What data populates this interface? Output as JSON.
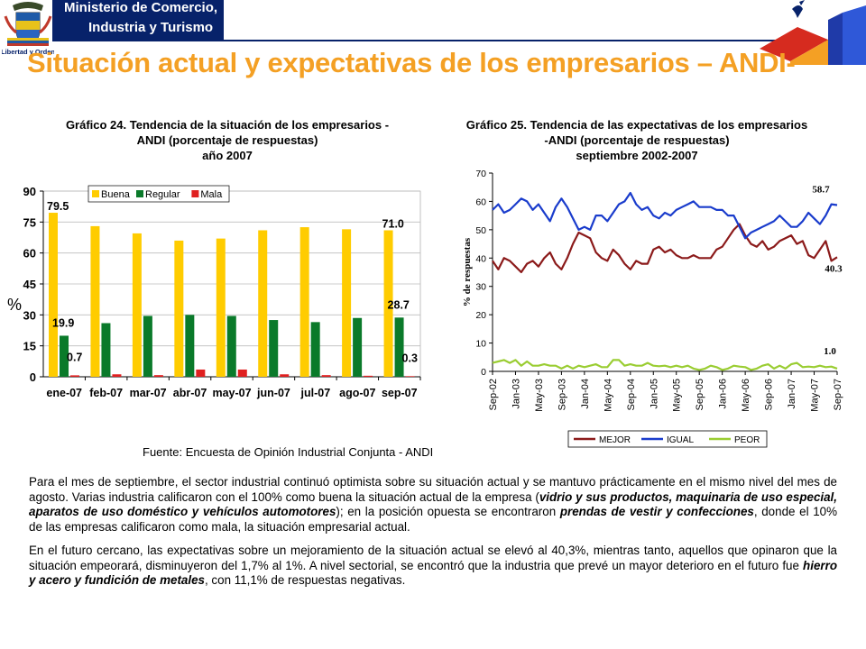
{
  "header": {
    "ministry_line1": "Ministerio de Comercio,",
    "ministry_line2": "Industria y Turismo",
    "crest_caption": "Libertad y Orden",
    "brand_dark": "#07226a",
    "brand_orange": "#f4a024"
  },
  "page_title": "Situación actual y expectativas de los empresarios – ANDI-",
  "chart24_title": {
    "line1": "Gráfico 24.  Tendencia de la situación de los  empresarios -",
    "line2": "ANDI (porcentaje de respuestas)",
    "line3": "año 2007"
  },
  "chart25_title": {
    "line1": "Gráfico 25.  Tendencia de las expectativas de los  empresarios",
    "line2": "-ANDI (porcentaje de respuestas)",
    "line3": "septiembre 2002-2007"
  },
  "source_note": "Fuente:  Encuesta de Opinión Industrial  Conjunta - ANDI",
  "paragraphs": [
    {
      "p1a": "Para el mes de septiembre, el sector industrial continuó optimista sobre su situación actual y se mantuvo prácticamente en el mismo nivel del mes de agosto.  Varias industria calificaron con el 100% como buena la situación actual de la empresa (",
      "p1b": "vidrio y sus productos, maquinaria de uso especial, aparatos de uso doméstico y vehículos automotores",
      "p1c": "); en la posición opuesta se encontraron ",
      "p1d": "prendas de vestir y confecciones",
      "p1e": ", donde el 10% de las empresas calificaron como mala, la situación empresarial actual."
    },
    {
      "p2a": "En el futuro cercano, las expectativas sobre un mejoramiento de la situación actual se elevó al 40,3%, mientras tanto, aquellos que opinaron que la situación empeorará, disminuyeron del 1,7% al 1%. A nivel sectorial, se encontró que la industria que prevé un mayor deterioro en el futuro fue ",
      "p2b": "hierro y acero y fundición de metales",
      "p2c": ", con 11,1% de respuestas negativas."
    }
  ],
  "chart_data": [
    {
      "type": "bar",
      "categories": [
        "ene-07",
        "feb-07",
        "mar-07",
        "abr-07",
        "may-07",
        "jun-07",
        "jul-07",
        "ago-07",
        "sep-07"
      ],
      "series": [
        {
          "name": "Buena",
          "color": "#ffcc00",
          "values": [
            79.5,
            73,
            69.5,
            66,
            67,
            71,
            72.5,
            71.5,
            71.0
          ]
        },
        {
          "name": "Regular",
          "color": "#0a7a2a",
          "values": [
            19.9,
            26,
            29.5,
            30,
            29.5,
            27.5,
            26.5,
            28.5,
            28.7
          ]
        },
        {
          "name": "Mala",
          "color": "#e02020",
          "values": [
            0.7,
            1.2,
            0.8,
            3.5,
            3.5,
            1.2,
            0.8,
            0.5,
            0.3
          ]
        }
      ],
      "data_labels": [
        {
          "text": "79.5",
          "series": 0,
          "index": 0
        },
        {
          "text": "19.9",
          "series": 1,
          "index": 0
        },
        {
          "text": "0.7",
          "series": 2,
          "index": 0
        },
        {
          "text": "71.0",
          "series": 0,
          "index": 8
        },
        {
          "text": "28.7",
          "series": 1,
          "index": 8
        },
        {
          "text": "0.3",
          "series": 2,
          "index": 8
        }
      ],
      "ylabel": "%",
      "ylim": [
        0,
        90
      ],
      "yticks": [
        0,
        15,
        30,
        45,
        60,
        75,
        90
      ],
      "grid": true,
      "legend": "top"
    },
    {
      "type": "line",
      "ylabel": "% de respuestas",
      "ylim": [
        0,
        70
      ],
      "yticks": [
        0,
        10,
        20,
        30,
        40,
        50,
        60,
        70
      ],
      "grid": false,
      "legend": "bottom",
      "x_tick_labels": [
        "Sep-02",
        "Jan-03",
        "May-03",
        "Sep-03",
        "Jan-04",
        "May-04",
        "Sep-04",
        "Jan-05",
        "May-05",
        "Sep-05",
        "Jan-06",
        "May-06",
        "Sep-06",
        "Jan-07",
        "May-07",
        "Sep-07"
      ],
      "series": [
        {
          "name": "MEJOR",
          "color": "#8b1a1a",
          "values": [
            39,
            36,
            40,
            39,
            37,
            35,
            38,
            39,
            37,
            40,
            42,
            38,
            36,
            40,
            45,
            49,
            48,
            47,
            42,
            40,
            39,
            43,
            41,
            38,
            36,
            39,
            38,
            38,
            43,
            44,
            42,
            43,
            41,
            40,
            40,
            41,
            40,
            40,
            40,
            43,
            44,
            47,
            50,
            52,
            48,
            45,
            44,
            46,
            43,
            44,
            46,
            47,
            48,
            45,
            46,
            41,
            40,
            43,
            46,
            39,
            40.3
          ]
        },
        {
          "name": "IGUAL",
          "color": "#1a3ccc",
          "values": [
            57,
            59,
            56,
            57,
            59,
            61,
            60,
            57,
            59,
            56,
            53,
            58,
            61,
            58,
            54,
            50,
            51,
            50,
            55,
            55,
            53,
            56,
            59,
            60,
            63,
            59,
            57,
            58,
            55,
            54,
            56,
            55,
            57,
            58,
            59,
            60,
            58,
            58,
            58,
            57,
            57,
            55,
            55,
            51,
            47,
            49,
            50,
            51,
            52,
            53,
            55,
            53,
            51,
            51,
            53,
            56,
            54,
            52,
            55,
            59,
            58.7
          ]
        },
        {
          "name": "PEOR",
          "color": "#9acd32",
          "values": [
            3,
            3.5,
            4,
            3,
            4,
            2,
            3.5,
            2,
            2,
            2.5,
            2,
            2,
            1,
            2,
            1,
            2,
            1.5,
            2,
            2.5,
            1.5,
            1.5,
            4,
            4,
            2,
            2.5,
            2,
            2,
            3,
            2,
            1.8,
            2,
            1.5,
            2,
            1.5,
            2,
            1,
            0.5,
            1,
            2,
            1.5,
            0.5,
            1,
            2,
            1.7,
            1.5,
            0.5,
            1,
            2,
            2.5,
            1,
            2,
            1,
            2.5,
            3,
            1.5,
            1.7,
            1.5,
            2,
            1.5,
            1.7,
            1.0
          ]
        }
      ],
      "end_labels": [
        {
          "text": "58.7",
          "series": 1
        },
        {
          "text": "40.3",
          "series": 0
        },
        {
          "text": "1.0",
          "series": 2
        }
      ]
    }
  ]
}
